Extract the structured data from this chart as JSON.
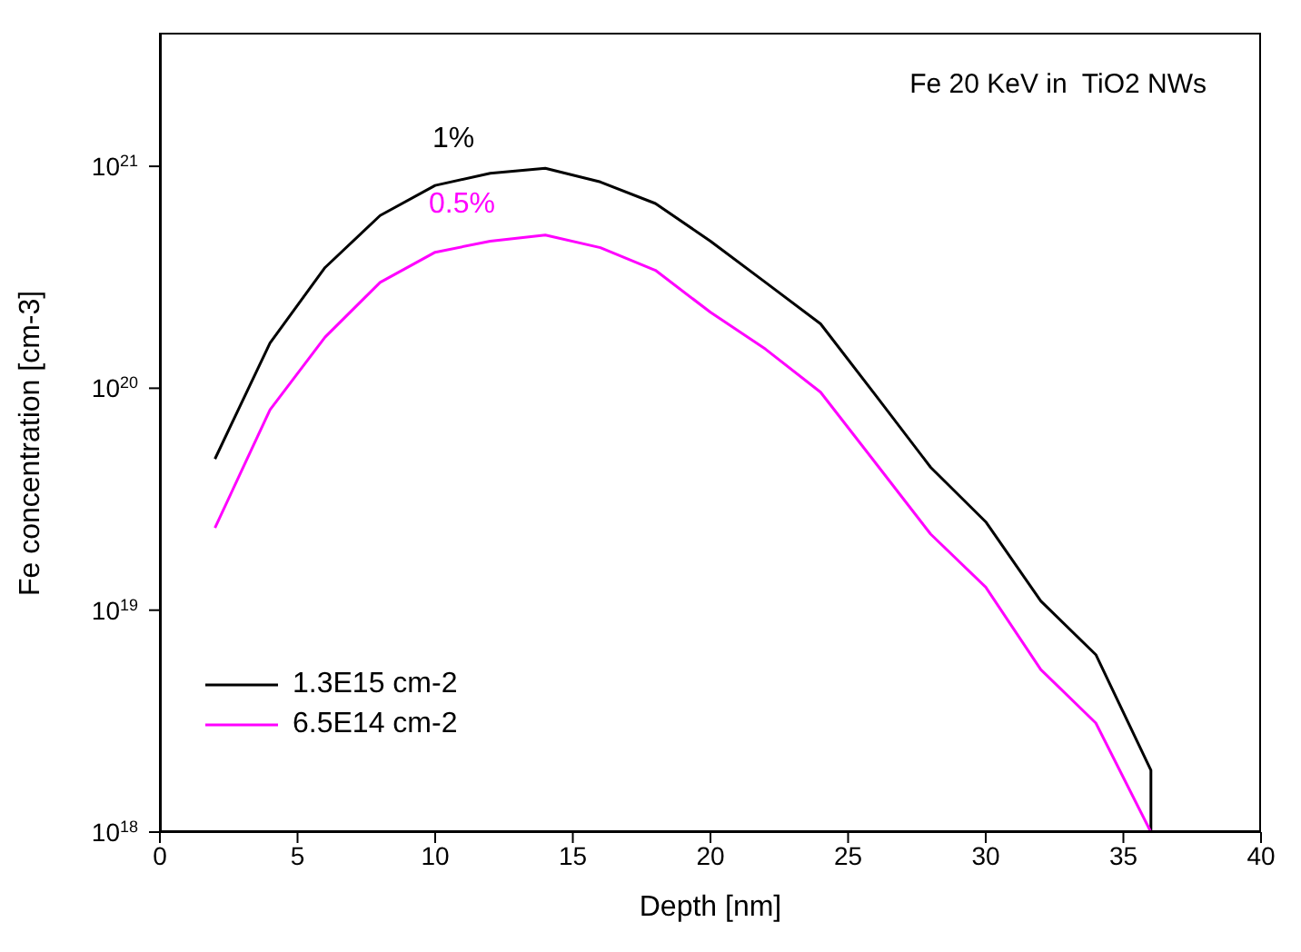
{
  "chart_data": {
    "type": "line",
    "title": "Fe 20 KeV in  TiO2 NWs",
    "xlabel": "Depth [nm]",
    "ylabel": "Fe concentration [cm-3]",
    "x": [
      2,
      4,
      6,
      8,
      10,
      12,
      14,
      16,
      18,
      20,
      22,
      24,
      26,
      28,
      30,
      32,
      34,
      36,
      36
    ],
    "series": [
      {
        "name": "1.3E15 cm-2",
        "color": "#000000",
        "values": [
          4.8e+19,
          1.6e+20,
          3.5e+20,
          6e+20,
          8.2e+20,
          9.3e+20,
          9.8e+20,
          8.5e+20,
          6.8e+20,
          4.6e+20,
          3e+20,
          1.95e+20,
          9.3e+19,
          4.4e+19,
          2.5e+19,
          1.1e+19,
          6.3e+18,
          1.9e+18,
          1e+18
        ]
      },
      {
        "name": "6.5E14 cm-2",
        "color": "#ff00ff",
        "values": [
          2.35e+19,
          8e+19,
          1.7e+20,
          3e+20,
          4.1e+20,
          4.6e+20,
          4.9e+20,
          4.3e+20,
          3.4e+20,
          2.2e+20,
          1.5e+20,
          9.6e+19,
          4.6e+19,
          2.2e+19,
          1.27e+19,
          5.4e+18,
          3.1e+18,
          1e+18,
          1e+18
        ]
      }
    ],
    "annotations": [
      "1%",
      "0.5%"
    ],
    "log": "y",
    "xlim": [
      0,
      40
    ],
    "xticks": [
      0,
      5,
      10,
      15,
      20,
      25,
      30,
      35,
      40
    ],
    "ylim": [
      1e+18,
      4e+21
    ],
    "yticks": [
      {
        "value": 1e+18,
        "label": "10$^{18}$"
      },
      {
        "value": 1e+19,
        "label": "10$^{19}$"
      },
      {
        "value": 1e+20,
        "label": "10$^{20}$"
      },
      {
        "value": 1e+21,
        "label": "10$^{21}$"
      }
    ],
    "grid": false,
    "legend": "bottom left",
    "marker": "none",
    "line_style": "solid"
  }
}
